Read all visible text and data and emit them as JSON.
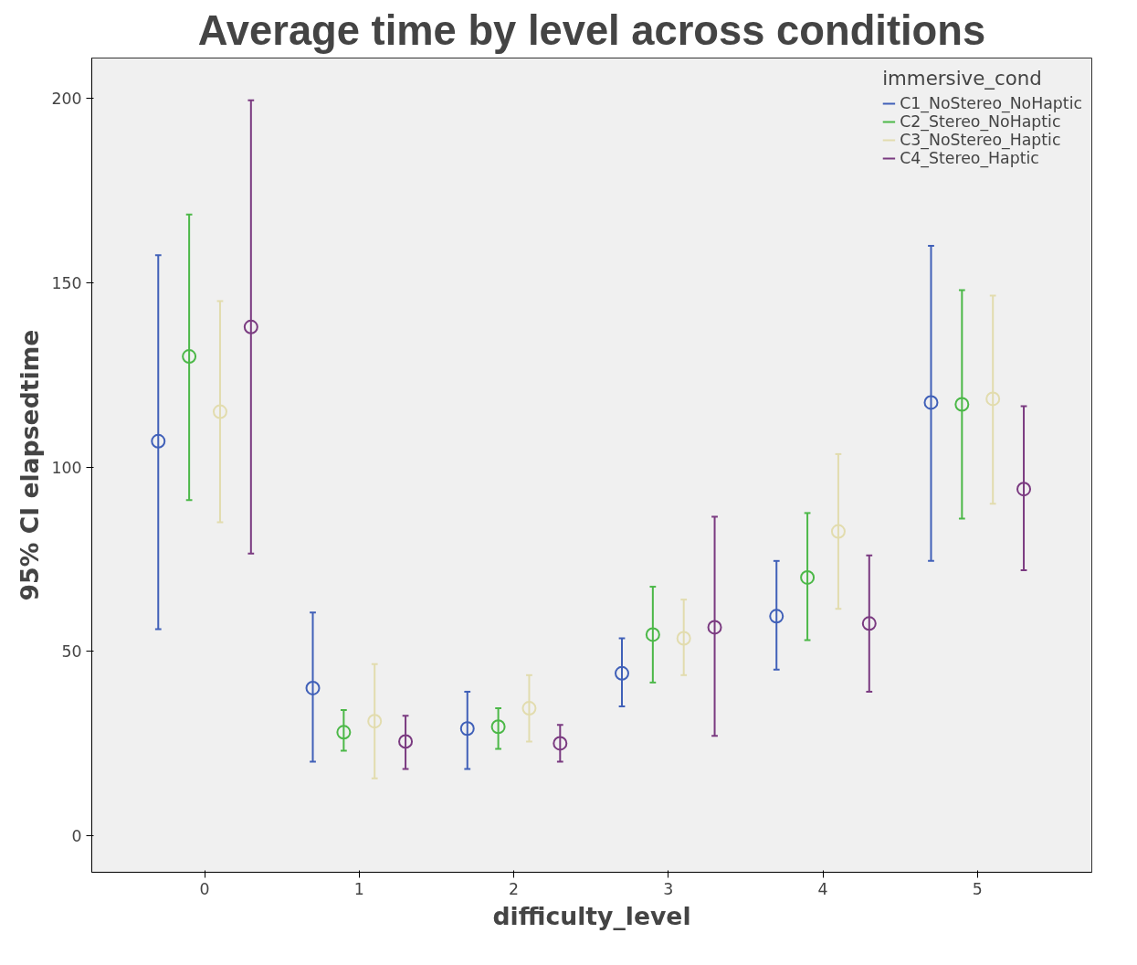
{
  "chart_data": {
    "type": "scatter",
    "title": "Average time by level across conditions",
    "xlabel": "difficulty_level",
    "ylabel": "95% CI elapsedtime",
    "legend_title": "immersive_cond",
    "categories": [
      "0",
      "1",
      "2",
      "3",
      "4",
      "5"
    ],
    "ylim": [
      -10,
      211
    ],
    "yticks": [
      0,
      50,
      100,
      150,
      200
    ],
    "grid": false,
    "legend": "top right",
    "marker": "circle",
    "series": [
      {
        "name": "C1_NoStereo_NoHaptic",
        "color": "#4060b8",
        "values": [
          107,
          40,
          29,
          44,
          59.5,
          117.5
        ],
        "errors": [
          [
            56,
            157.5
          ],
          [
            20,
            60.5
          ],
          [
            18,
            39
          ],
          [
            35,
            53.5
          ],
          [
            45,
            74.5
          ],
          [
            74.5,
            160
          ]
        ]
      },
      {
        "name": "C2_Stereo_NoHaptic",
        "color": "#4cb848",
        "values": [
          130,
          28,
          29.5,
          54.5,
          70,
          117
        ],
        "errors": [
          [
            91,
            168.5
          ],
          [
            23,
            34
          ],
          [
            23.5,
            34.5
          ],
          [
            41.5,
            67.5
          ],
          [
            53,
            87.5
          ],
          [
            86,
            148
          ]
        ]
      },
      {
        "name": "C3_NoStereo_Haptic",
        "color": "#e2dcae",
        "values": [
          115,
          31,
          34.5,
          53.5,
          82.5,
          118.5
        ],
        "errors": [
          [
            85,
            145
          ],
          [
            15.5,
            46.5
          ],
          [
            25.5,
            43.5
          ],
          [
            43.5,
            64
          ],
          [
            61.5,
            103.5
          ],
          [
            90,
            146.5
          ]
        ]
      },
      {
        "name": "C4_Stereo_Haptic",
        "color": "#7a3a80",
        "values": [
          138,
          25.5,
          25,
          56.5,
          57.5,
          94
        ],
        "errors": [
          [
            76.5,
            199.5
          ],
          [
            18,
            32.5
          ],
          [
            20,
            30
          ],
          [
            27,
            86.5
          ],
          [
            39,
            76
          ],
          [
            72,
            116.5
          ]
        ]
      }
    ]
  }
}
